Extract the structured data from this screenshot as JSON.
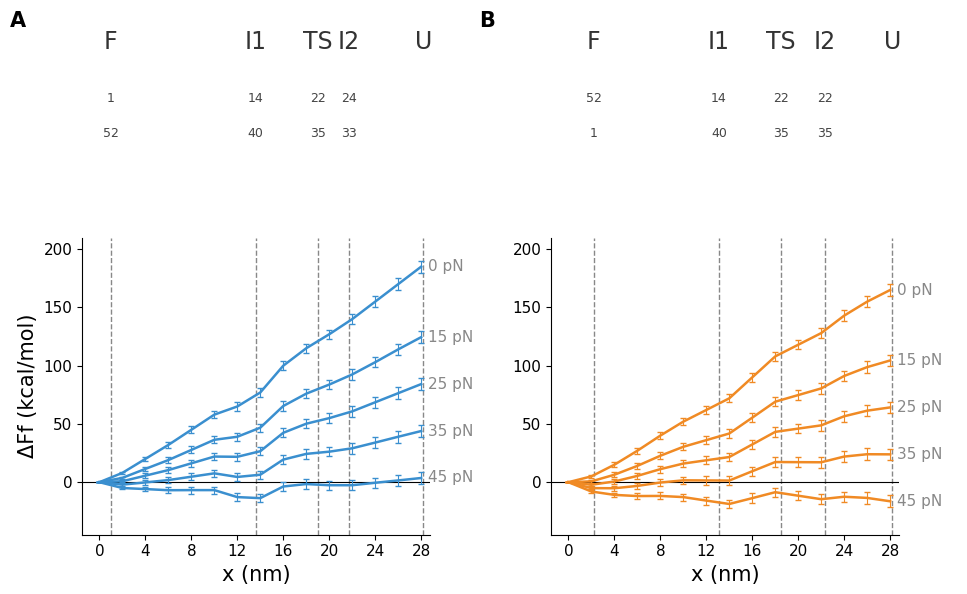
{
  "chart_data": [
    {
      "type": "line",
      "panel": "A",
      "xlabel": "x (nm)",
      "ylabel": "ΔFf (kcal/mol)",
      "xlim": [
        -1.5,
        28.8
      ],
      "ylim": [
        -45,
        210
      ],
      "xticks": [
        0,
        4,
        8,
        12,
        16,
        20,
        24,
        28
      ],
      "yticks": [
        0,
        50,
        100,
        150,
        200
      ],
      "color": "#3a8fcf",
      "states": [
        {
          "label": "F",
          "x": 1.0,
          "residues": [
            1,
            52
          ]
        },
        {
          "label": "I1",
          "x": 13.6,
          "residues": [
            14,
            40
          ]
        },
        {
          "label": "TS",
          "x": 19.0,
          "residues": [
            22,
            35
          ]
        },
        {
          "label": "I2",
          "x": 21.7,
          "residues": [
            24,
            33
          ]
        },
        {
          "label": "U",
          "x": 28.2,
          "residues": []
        }
      ],
      "x": [
        0,
        2,
        4,
        6,
        8,
        10,
        12,
        14,
        16,
        18,
        20,
        22,
        24,
        26,
        28
      ],
      "series": [
        {
          "name": "0 pN",
          "values": [
            0,
            8,
            20,
            32,
            45,
            58,
            65,
            77,
            100,
            115,
            127,
            140,
            155,
            170,
            185
          ],
          "errors": [
            0,
            1,
            2,
            2.5,
            3,
            3,
            3.5,
            3.5,
            4,
            4,
            4,
            4.5,
            4.5,
            5,
            5
          ]
        },
        {
          "name": "15 pN",
          "values": [
            0,
            3.7,
            11.4,
            19,
            27.7,
            36.4,
            39,
            46.8,
            65.4,
            76,
            83.8,
            92.5,
            103,
            114,
            124.5
          ],
          "errors": [
            0,
            1,
            2,
            2.5,
            3,
            3,
            3.5,
            3.5,
            4,
            4,
            4,
            4.5,
            4.5,
            5,
            5
          ]
        },
        {
          "name": "25 pN",
          "values": [
            0,
            0.8,
            5.6,
            10.4,
            16.2,
            22,
            21.8,
            26.6,
            42.4,
            50.2,
            55,
            60.8,
            68.6,
            76.4,
            84.2
          ],
          "errors": [
            0,
            1,
            2,
            2.5,
            3,
            3,
            3.5,
            3.5,
            4,
            4,
            4,
            4.5,
            4.5,
            5,
            5
          ]
        },
        {
          "name": "35 pN",
          "values": [
            0,
            -2.1,
            -0.2,
            1.8,
            4.7,
            7.6,
            4.5,
            6.4,
            19.4,
            24.3,
            26.2,
            29.1,
            34,
            39,
            43.9
          ],
          "errors": [
            0,
            1,
            2,
            2.5,
            3,
            3,
            3.5,
            3.5,
            4,
            4,
            4,
            4.5,
            4.5,
            5,
            5
          ]
        },
        {
          "name": "45 pN",
          "values": [
            0,
            -5,
            -5.9,
            -6.9,
            -6.8,
            -6.8,
            -12.8,
            -13.7,
            -3.7,
            -1.6,
            -2.6,
            -2.6,
            -0.5,
            1.5,
            3.6
          ],
          "errors": [
            0,
            1,
            2,
            2.5,
            3,
            3,
            3.5,
            3.5,
            4,
            4,
            4,
            4.5,
            4.5,
            5,
            5
          ]
        }
      ]
    },
    {
      "type": "line",
      "panel": "B",
      "xlabel": "x (nm)",
      "xlim": [
        -1.5,
        28.8
      ],
      "ylim": [
        -45,
        210
      ],
      "xticks": [
        0,
        4,
        8,
        12,
        16,
        20,
        24,
        28
      ],
      "yticks": [
        0,
        50,
        100,
        150,
        200
      ],
      "color": "#f08a24",
      "states": [
        {
          "label": "F",
          "x": 2.2,
          "residues": [
            52,
            1
          ]
        },
        {
          "label": "I1",
          "x": 13.1,
          "residues": [
            14,
            40
          ]
        },
        {
          "label": "TS",
          "x": 18.5,
          "residues": [
            22,
            35
          ]
        },
        {
          "label": "I2",
          "x": 22.3,
          "residues": [
            22,
            35
          ]
        },
        {
          "label": "U",
          "x": 28.2,
          "residues": []
        }
      ],
      "x": [
        0,
        2,
        4,
        6,
        8,
        10,
        12,
        14,
        16,
        18,
        20,
        22,
        24,
        26,
        28
      ],
      "series": [
        {
          "name": "0 pN",
          "values": [
            0,
            5,
            15,
            27,
            40,
            52,
            62,
            72,
            90,
            108,
            118,
            128,
            143,
            155,
            165
          ],
          "errors": [
            0,
            1,
            2,
            2.5,
            3,
            3,
            3.5,
            3.5,
            4,
            4,
            4,
            4.5,
            4.5,
            5,
            5
          ]
        },
        {
          "name": "15 pN",
          "values": [
            0,
            0.7,
            6.4,
            14,
            22.7,
            30.4,
            36.1,
            41.8,
            55.4,
            69.1,
            74.8,
            80.5,
            91.2,
            98.8,
            104.5
          ],
          "errors": [
            0,
            1,
            2,
            2.5,
            3,
            3,
            3.5,
            3.5,
            4,
            4,
            4,
            4.5,
            4.5,
            5,
            5
          ]
        },
        {
          "name": "25 pN",
          "values": [
            0,
            -2.2,
            0.6,
            5.4,
            11.2,
            16,
            18.8,
            21.6,
            32.4,
            43.2,
            46,
            48.8,
            56.6,
            61.4,
            64.2
          ],
          "errors": [
            0,
            1,
            2,
            2.5,
            3,
            3,
            3.5,
            3.5,
            4,
            4,
            4,
            4.5,
            4.5,
            5,
            5
          ]
        },
        {
          "name": "35 pN",
          "values": [
            0,
            -5.1,
            -5.2,
            -3.2,
            -0.3,
            1.6,
            1.5,
            1.4,
            9.4,
            17.3,
            17.2,
            17.1,
            22,
            24,
            23.9
          ],
          "errors": [
            0,
            1,
            2,
            2.5,
            3,
            3,
            3.5,
            3.5,
            4,
            4,
            4,
            4.5,
            4.5,
            5,
            5
          ]
        },
        {
          "name": "45 pN",
          "values": [
            0,
            -8,
            -10.9,
            -11.9,
            -11.8,
            -12.8,
            -15.8,
            -18.7,
            -13.7,
            -8.6,
            -11.6,
            -14.6,
            -12.5,
            -13.5,
            -16.4
          ],
          "errors": [
            0,
            1,
            2,
            2.5,
            3,
            3,
            3.5,
            3.5,
            4,
            4,
            4,
            4.5,
            4.5,
            5,
            5
          ]
        }
      ]
    }
  ]
}
